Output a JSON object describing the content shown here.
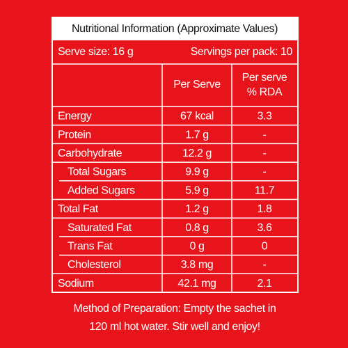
{
  "title": "Nutritional Information (Approximate Values)",
  "serve_size": "Serve size: 16 g",
  "servings": "Servings per pack: 10",
  "headers": {
    "per_serve": "Per Serve",
    "rda": [
      "Per serve",
      "% RDA"
    ]
  },
  "rows": [
    {
      "name": "Energy",
      "per_serve": "67 kcal",
      "rda": "3.3",
      "sub": false
    },
    {
      "name": "Protein",
      "per_serve": "1.7 g",
      "rda": "-",
      "sub": false
    },
    {
      "name": "Carbohydrate",
      "per_serve": "12.2 g",
      "rda": "-",
      "sub": false
    },
    {
      "name": "Total Sugars",
      "per_serve": "9.9 g",
      "rda": "-",
      "sub": true
    },
    {
      "name": "Added Sugars",
      "per_serve": "5.9 g",
      "rda": "11.7",
      "sub": true
    },
    {
      "name": "Total Fat",
      "per_serve": "1.2 g",
      "rda": "1.8",
      "sub": false
    },
    {
      "name": "Saturated Fat",
      "per_serve": "0.8 g",
      "rda": "3.6",
      "sub": true
    },
    {
      "name": "Trans Fat",
      "per_serve": "0 g",
      "rda": "0",
      "sub": true
    },
    {
      "name": "Cholesterol",
      "per_serve": "3.8 mg",
      "rda": "-",
      "sub": true
    },
    {
      "name": "Sodium",
      "per_serve": "42.1 mg",
      "rda": "2.1",
      "sub": false
    }
  ],
  "method": [
    "Method of Preparation: Empty the sachet in",
    "120 ml hot water. Stir well and enjoy!"
  ]
}
